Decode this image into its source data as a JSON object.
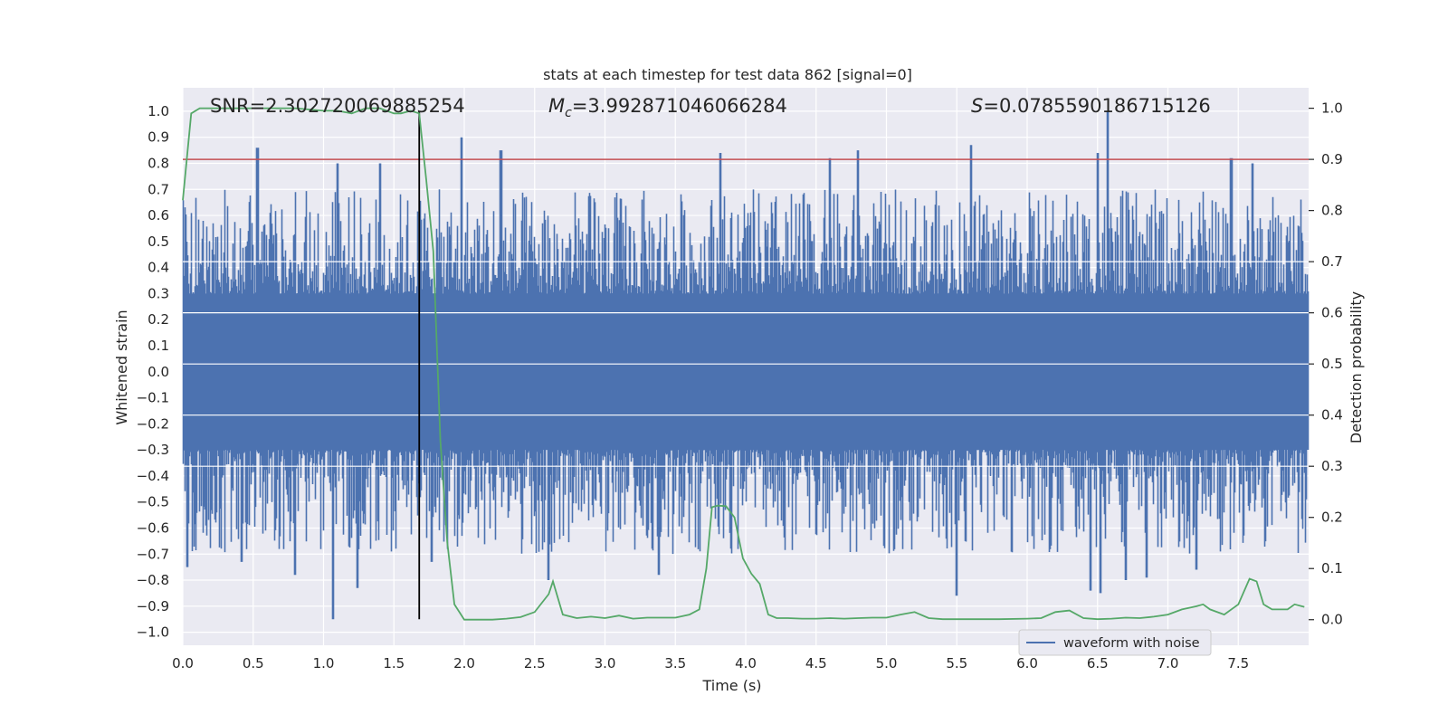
{
  "chart_data": {
    "type": "line",
    "title": "stats at each timestep for test data 862 [signal=0]",
    "annotations": {
      "snr_text": "SNR=2.302720069885254",
      "mc_symbol": "M",
      "mc_subscript": "c",
      "mc_value": "=3.992871046066284",
      "s_symbol": "S",
      "s_value": "=0.0785590186715126"
    },
    "xlabel": "Time (s)",
    "ylabel_left": "Whitened strain",
    "ylabel_right": "Detection probability",
    "xlim": [
      0.0,
      8.0
    ],
    "ylim_left": [
      -1.05,
      1.09
    ],
    "ylim_right": [
      -0.05,
      1.04
    ],
    "xticks": [
      "0.0",
      "0.5",
      "1.0",
      "1.5",
      "2.0",
      "2.5",
      "3.0",
      "3.5",
      "4.0",
      "4.5",
      "5.0",
      "5.5",
      "6.0",
      "6.5",
      "7.0",
      "7.5"
    ],
    "yticks_left": [
      "1.0",
      "0.9",
      "0.8",
      "0.7",
      "0.6",
      "0.5",
      "0.4",
      "0.3",
      "0.2",
      "0.1",
      "0.0",
      "−0.1",
      "−0.2",
      "−0.3",
      "−0.4",
      "−0.5",
      "−0.6",
      "−0.7",
      "−0.8",
      "−0.9",
      "−1.0"
    ],
    "yticks_right": [
      "1.0",
      "0.9",
      "0.8",
      "0.7",
      "0.6",
      "0.5",
      "0.4",
      "0.3",
      "0.2",
      "0.1",
      "0.0"
    ],
    "grid": true,
    "legend_position": "lower-right",
    "series": [
      {
        "name": "waveform with noise",
        "axis": "left",
        "color": "#4c72b0",
        "kind": "noise",
        "envelope": {
          "core_min": -0.3,
          "core_max": 0.3,
          "typical_peak": 0.55,
          "max": 1.0,
          "min": -0.95
        },
        "peaks": [
          {
            "x": 0.53,
            "y": 0.86
          },
          {
            "x": 1.1,
            "y": 0.8
          },
          {
            "x": 1.4,
            "y": 0.8
          },
          {
            "x": 1.98,
            "y": 0.9
          },
          {
            "x": 2.26,
            "y": 0.85
          },
          {
            "x": 3.82,
            "y": 0.84
          },
          {
            "x": 4.6,
            "y": 0.82
          },
          {
            "x": 4.8,
            "y": 0.85
          },
          {
            "x": 5.6,
            "y": 0.87
          },
          {
            "x": 6.5,
            "y": 0.84
          },
          {
            "x": 6.57,
            "y": 1.0
          },
          {
            "x": 7.45,
            "y": 0.82
          },
          {
            "x": 7.6,
            "y": 0.8
          },
          {
            "x": 0.03,
            "y": -0.75
          },
          {
            "x": 0.42,
            "y": -0.73
          },
          {
            "x": 0.8,
            "y": -0.78
          },
          {
            "x": 1.07,
            "y": -0.95
          },
          {
            "x": 1.24,
            "y": -0.83
          },
          {
            "x": 1.77,
            "y": -0.73
          },
          {
            "x": 2.6,
            "y": -0.8
          },
          {
            "x": 3.38,
            "y": -0.78
          },
          {
            "x": 5.5,
            "y": -0.86
          },
          {
            "x": 6.45,
            "y": -0.84
          },
          {
            "x": 6.52,
            "y": -0.85
          },
          {
            "x": 6.7,
            "y": -0.8
          },
          {
            "x": 6.85,
            "y": -0.79
          },
          {
            "x": 7.2,
            "y": -0.76
          }
        ]
      },
      {
        "name": "",
        "axis": "right",
        "color": "#55a868",
        "kind": "line",
        "x": [
          0.0,
          0.06,
          0.12,
          0.2,
          0.5,
          0.8,
          1.0,
          1.1,
          1.2,
          1.3,
          1.4,
          1.5,
          1.55,
          1.62,
          1.68,
          1.73,
          1.78,
          1.83,
          1.88,
          1.93,
          2.0,
          2.1,
          2.2,
          2.3,
          2.4,
          2.5,
          2.6,
          2.63,
          2.7,
          2.8,
          2.9,
          3.0,
          3.1,
          3.2,
          3.3,
          3.4,
          3.5,
          3.6,
          3.67,
          3.72,
          3.76,
          3.8,
          3.86,
          3.92,
          3.98,
          4.04,
          4.1,
          4.16,
          4.22,
          4.3,
          4.4,
          4.5,
          4.6,
          4.7,
          4.8,
          4.9,
          5.0,
          5.1,
          5.2,
          5.3,
          5.4,
          5.5,
          5.6,
          5.8,
          6.0,
          6.1,
          6.2,
          6.3,
          6.4,
          6.5,
          6.6,
          6.7,
          6.8,
          6.9,
          7.0,
          7.1,
          7.2,
          7.25,
          7.3,
          7.4,
          7.5,
          7.58,
          7.63,
          7.68,
          7.74,
          7.8,
          7.85,
          7.9,
          7.97
        ],
        "y": [
          0.82,
          0.99,
          1.0,
          1.0,
          1.0,
          1.0,
          0.995,
          0.995,
          0.99,
          1.0,
          1.0,
          0.99,
          0.99,
          0.995,
          0.99,
          0.86,
          0.72,
          0.35,
          0.15,
          0.03,
          0.0,
          0.0,
          0.0,
          0.002,
          0.005,
          0.015,
          0.05,
          0.075,
          0.01,
          0.003,
          0.006,
          0.003,
          0.008,
          0.002,
          0.004,
          0.004,
          0.004,
          0.01,
          0.02,
          0.1,
          0.22,
          0.223,
          0.222,
          0.2,
          0.12,
          0.09,
          0.07,
          0.01,
          0.003,
          0.003,
          0.002,
          0.002,
          0.003,
          0.002,
          0.003,
          0.004,
          0.004,
          0.01,
          0.015,
          0.003,
          0.001,
          0.001,
          0.001,
          0.001,
          0.002,
          0.003,
          0.015,
          0.018,
          0.003,
          0.001,
          0.002,
          0.004,
          0.003,
          0.006,
          0.01,
          0.02,
          0.026,
          0.03,
          0.02,
          0.01,
          0.03,
          0.08,
          0.075,
          0.03,
          0.02,
          0.02,
          0.02,
          0.03,
          0.025
        ]
      }
    ],
    "threshold": {
      "axis": "right",
      "value": 0.9,
      "color": "#c44e52"
    },
    "marker_x": 1.68,
    "marker_color": "#000000"
  }
}
